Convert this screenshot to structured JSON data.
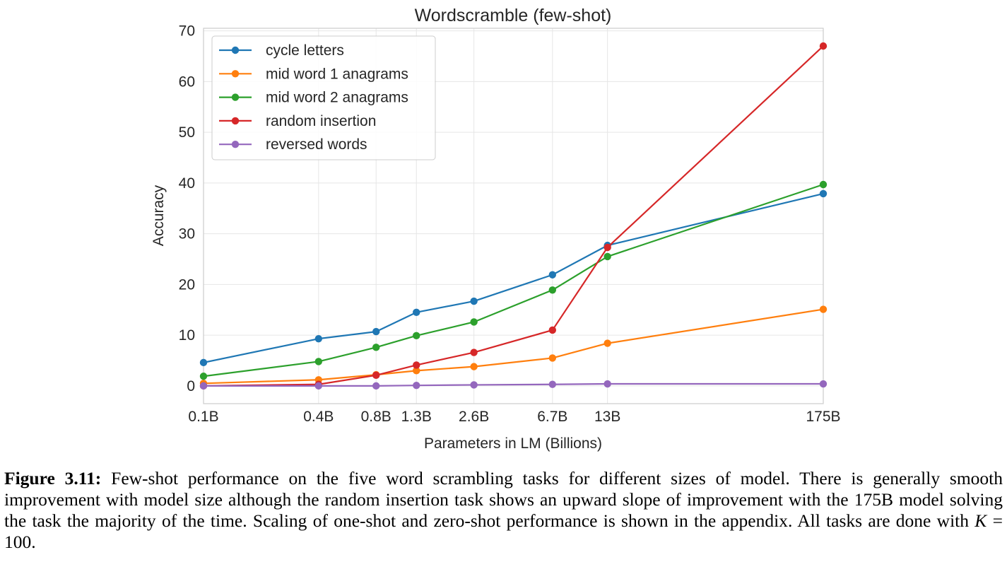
{
  "chart_data": {
    "type": "line",
    "title": "Wordscramble (few-shot)",
    "xlabel": "Parameters in LM (Billions)",
    "ylabel": "Accuracy",
    "x": [
      0.1,
      0.4,
      0.8,
      1.3,
      2.6,
      6.7,
      13,
      175
    ],
    "x_tick_labels": [
      "0.1B",
      "0.4B",
      "0.8B",
      "1.3B",
      "2.6B",
      "6.7B",
      "13B",
      "175B"
    ],
    "y_ticks": [
      0,
      10,
      20,
      30,
      40,
      50,
      60,
      70
    ],
    "ylim": [
      -3.5,
      70.5
    ],
    "x_scale": "log",
    "grid": true,
    "legend_position": "upper-left",
    "series": [
      {
        "name": "cycle letters",
        "color": "#1f77b4",
        "values": [
          4.6,
          9.3,
          10.7,
          14.5,
          16.7,
          21.9,
          27.7,
          37.9
        ]
      },
      {
        "name": "mid word 1 anagrams",
        "color": "#ff7f0e",
        "values": [
          0.5,
          1.2,
          2.2,
          3.0,
          3.8,
          5.5,
          8.4,
          15.1
        ]
      },
      {
        "name": "mid word 2 anagrams",
        "color": "#2ca02c",
        "values": [
          1.9,
          4.8,
          7.6,
          9.9,
          12.6,
          18.9,
          25.5,
          39.7
        ]
      },
      {
        "name": "random insertion",
        "color": "#d62728",
        "values": [
          0.0,
          0.3,
          2.1,
          4.1,
          6.6,
          11.0,
          27.3,
          67.0
        ]
      },
      {
        "name": "reversed words",
        "color": "#9467bd",
        "values": [
          0.0,
          0.0,
          0.0,
          0.1,
          0.2,
          0.3,
          0.4,
          0.4
        ]
      }
    ]
  },
  "caption": {
    "label": "Figure 3.11:",
    "text_before_math": " Few-shot performance on the five word scrambling tasks for different sizes of model. There is generally smooth improvement with model size although the random insertion task shows an upward slope of improvement with the 175B model solving the task the majority of the time. Scaling of one-shot and zero-shot performance is shown in the appendix. All tasks are done with ",
    "math_var": "K",
    "math_rest": " = 100",
    "text_after_math": "."
  }
}
